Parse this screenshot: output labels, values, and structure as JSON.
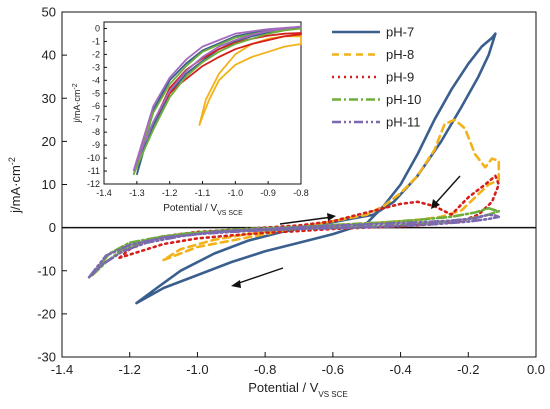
{
  "chart_data": [
    {
      "type": "line",
      "xlabel": "Potential / V",
      "xlabel_sub": "VS SCE",
      "ylabel": "j/mA·cm",
      "ylabel_sup": "-2",
      "xlim": [
        -1.4,
        0.0
      ],
      "ylim": [
        -30,
        50
      ],
      "xticks": [
        "-1.4",
        "-1.2",
        "-1.0",
        "-0.8",
        "-0.6",
        "-0.4",
        "-0.2",
        "0.0"
      ],
      "yticks": [
        "-30",
        "-20",
        "-10",
        "0",
        "10",
        "20",
        "30",
        "40",
        "50"
      ],
      "xtick_values": [
        -1.4,
        -1.2,
        -1.0,
        -0.8,
        -0.6,
        -0.4,
        -0.2,
        0.0
      ],
      "ytick_values": [
        -30,
        -20,
        -10,
        0,
        10,
        20,
        30,
        40,
        50
      ],
      "legend_position": "top-right",
      "series": [
        {
          "name": "pH-7",
          "color": "#3a5f8f",
          "dash": "solid",
          "x": [
            -1.18,
            -1.1,
            -1.0,
            -0.9,
            -0.8,
            -0.7,
            -0.6,
            -0.5,
            -0.45,
            -0.4,
            -0.35,
            -0.3,
            -0.25,
            -0.2,
            -0.16,
            -0.13,
            -0.12,
            -0.14,
            -0.17,
            -0.22,
            -0.28,
            -0.35,
            -0.42,
            -0.48,
            -0.55,
            -0.65,
            -0.75,
            -0.85,
            -0.95,
            -1.05,
            -1.12,
            -1.18
          ],
          "y": [
            -17.5,
            -14,
            -11,
            -8,
            -5.5,
            -3.5,
            -1.5,
            1,
            5,
            10,
            17,
            25,
            32,
            38,
            42,
            44,
            45,
            40,
            35,
            28,
            20,
            12,
            6,
            3,
            2,
            0.5,
            -1,
            -3,
            -6,
            -10,
            -14,
            -17.5
          ]
        },
        {
          "name": "pH-8",
          "color": "#f2b21a",
          "dash": "7,5",
          "x": [
            -1.1,
            -1.05,
            -1.0,
            -0.9,
            -0.8,
            -0.7,
            -0.6,
            -0.5,
            -0.45,
            -0.4,
            -0.35,
            -0.3,
            -0.27,
            -0.24,
            -0.21,
            -0.18,
            -0.15,
            -0.13,
            -0.11,
            -0.11,
            -0.14,
            -0.18,
            -0.22,
            -0.28,
            -0.35,
            -0.45,
            -0.55,
            -0.65,
            -0.75,
            -0.85,
            -0.95,
            -1.05,
            -1.1
          ],
          "y": [
            -7.5,
            -6,
            -4.5,
            -3,
            -1.5,
            0,
            1.5,
            3,
            5,
            8,
            12,
            18,
            24,
            25,
            23,
            17,
            14,
            16,
            15.5,
            11,
            10,
            7,
            4,
            2.5,
            1.8,
            1.2,
            0.8,
            0.3,
            -0.5,
            -1.5,
            -2.8,
            -5,
            -7.5
          ]
        },
        {
          "name": "pH-9",
          "color": "#d4201c",
          "dash": "2,4",
          "x": [
            -1.23,
            -1.2,
            -1.15,
            -1.1,
            -1.0,
            -0.9,
            -0.8,
            -0.7,
            -0.6,
            -0.55,
            -0.5,
            -0.45,
            -0.4,
            -0.35,
            -0.3,
            -0.25,
            -0.2,
            -0.15,
            -0.12,
            -0.11,
            -0.13,
            -0.17,
            -0.22,
            -0.3,
            -0.4,
            -0.5,
            -0.6,
            -0.7,
            -0.8,
            -0.9,
            -1.0,
            -1.1,
            -1.23
          ],
          "y": [
            -7,
            -5,
            -3,
            -2,
            -1,
            -0.5,
            0,
            0.5,
            1.5,
            2.5,
            3.5,
            4.5,
            5.5,
            6,
            5,
            3,
            7,
            10,
            12,
            10,
            6,
            3,
            1.5,
            0.8,
            0.3,
            0,
            -0.3,
            -0.8,
            -1.2,
            -1.8,
            -2.5,
            -3.8,
            -7
          ]
        },
        {
          "name": "pH-10",
          "color": "#6fae3c",
          "dash": "9,3,2,3",
          "x": [
            -1.31,
            -1.27,
            -1.22,
            -1.15,
            -1.05,
            -0.95,
            -0.85,
            -0.75,
            -0.65,
            -0.55,
            -0.45,
            -0.35,
            -0.25,
            -0.18,
            -0.14,
            -0.12,
            -0.11,
            -0.14,
            -0.2,
            -0.3,
            -0.4,
            -0.5,
            -0.6,
            -0.7,
            -0.8,
            -0.9,
            -1.0,
            -1.1,
            -1.2,
            -1.26,
            -1.31
          ],
          "y": [
            -11,
            -8,
            -5,
            -3,
            -1.5,
            -0.8,
            -0.3,
            0,
            0.4,
            0.8,
            1.2,
            1.8,
            2.5,
            3.5,
            4.5,
            4,
            3.8,
            3,
            2,
            1.2,
            0.6,
            0.2,
            0,
            -0.3,
            -0.6,
            -0.9,
            -1.3,
            -2,
            -3.5,
            -6,
            -11
          ]
        },
        {
          "name": "pH-11",
          "color": "#7b68b0",
          "dash": "9,3,2,3,2,3",
          "x": [
            -1.32,
            -1.28,
            -1.22,
            -1.15,
            -1.05,
            -0.95,
            -0.85,
            -0.75,
            -0.65,
            -0.55,
            -0.45,
            -0.35,
            -0.25,
            -0.18,
            -0.14,
            -0.12,
            -0.11,
            -0.14,
            -0.2,
            -0.3,
            -0.4,
            -0.5,
            -0.6,
            -0.7,
            -0.8,
            -0.9,
            -1.0,
            -1.1,
            -1.2,
            -1.27,
            -1.32
          ],
          "y": [
            -11.5,
            -8.5,
            -5.5,
            -3.5,
            -2,
            -1,
            -0.5,
            -0.1,
            0.3,
            0.6,
            0.9,
            1.2,
            1.6,
            2.2,
            3,
            2.8,
            2.5,
            2,
            1.4,
            0.8,
            0.4,
            0.1,
            -0.1,
            -0.3,
            -0.6,
            -1,
            -1.5,
            -2.3,
            -4,
            -6.5,
            -11.5
          ]
        }
      ]
    },
    {
      "type": "line",
      "xlabel": "Potential / V",
      "xlabel_sub": "VS SCE",
      "ylabel": "j/mA·cm",
      "ylabel_sup": "-2",
      "xlim": [
        -1.4,
        -0.8
      ],
      "ylim": [
        -12,
        0.5
      ],
      "xticks": [
        "-1.4",
        "-1.3",
        "-1.2",
        "-1.1",
        "-1.0",
        "-0.9",
        "-0.8"
      ],
      "yticks": [
        "0",
        "-1",
        "-2",
        "-3",
        "-4",
        "-5",
        "-6",
        "-7",
        "-8",
        "-9",
        "-10",
        "-11",
        "-12"
      ],
      "xtick_values": [
        -1.4,
        -1.3,
        -1.2,
        -1.1,
        -1.0,
        -0.9,
        -0.8
      ],
      "ytick_values": [
        0,
        -1,
        -2,
        -3,
        -4,
        -5,
        -6,
        -7,
        -8,
        -9,
        -10,
        -11,
        -12
      ],
      "legend_position": "none",
      "series": [
        {
          "name": "pH-7",
          "color": "#3a5f8f",
          "x": [
            -1.3,
            -1.28,
            -1.25,
            -1.2,
            -1.15,
            -1.1,
            -1.05,
            -1.0,
            -0.95,
            -0.9,
            -0.85,
            -0.8,
            -0.82,
            -0.9,
            -1.0,
            -1.1,
            -1.15,
            -1.2,
            -1.25,
            -1.3
          ],
          "y": [
            -11.3,
            -9.5,
            -7.5,
            -5,
            -3.5,
            -2.5,
            -1.6,
            -1.0,
            -0.6,
            -0.3,
            -0.1,
            0.1,
            0.0,
            -0.1,
            -0.6,
            -1.7,
            -2.7,
            -4,
            -6.3,
            -11.3
          ]
        },
        {
          "name": "pH-8",
          "color": "#f2b21a",
          "x": [
            -1.11,
            -1.1,
            -1.08,
            -1.05,
            -1.0,
            -0.95,
            -0.9,
            -0.85,
            -0.8,
            -0.8,
            -0.85,
            -0.9,
            -0.95,
            -1.0,
            -1.05,
            -1.09,
            -1.11
          ],
          "y": [
            -7.5,
            -6.8,
            -5.5,
            -4,
            -2.8,
            -2.2,
            -1.8,
            -1.4,
            -1.2,
            -0.6,
            -0.6,
            -0.8,
            -1.2,
            -2,
            -3.5,
            -5.5,
            -7.5
          ]
        },
        {
          "name": "pH-9",
          "color": "#d4201c",
          "x": [
            -1.24,
            -1.22,
            -1.2,
            -1.17,
            -1.13,
            -1.1,
            -1.05,
            -1.0,
            -0.95,
            -0.9,
            -0.85,
            -0.8,
            -0.8,
            -0.85,
            -0.9,
            -0.95,
            -1.0,
            -1.05,
            -1.1,
            -1.15,
            -1.2,
            -1.24
          ],
          "y": [
            -6.8,
            -5.8,
            -5.0,
            -4.3,
            -3.5,
            -2.9,
            -2.2,
            -1.6,
            -1.2,
            -0.9,
            -0.6,
            -0.45,
            -0.35,
            -0.4,
            -0.55,
            -0.8,
            -1.1,
            -1.6,
            -2.3,
            -3.2,
            -4.6,
            -6.8
          ]
        },
        {
          "name": "pH-10",
          "color": "#6fae3c",
          "x": [
            -1.31,
            -1.28,
            -1.25,
            -1.2,
            -1.15,
            -1.1,
            -1.05,
            -1.0,
            -0.95,
            -0.9,
            -0.85,
            -0.8,
            -0.82,
            -0.9,
            -1.0,
            -1.1,
            -1.15,
            -1.2,
            -1.25,
            -1.31
          ],
          "y": [
            -11.3,
            -9.5,
            -7.8,
            -5.3,
            -3.7,
            -2.6,
            -1.8,
            -1.2,
            -0.8,
            -0.4,
            -0.15,
            0.0,
            -0.05,
            -0.2,
            -0.7,
            -1.8,
            -2.9,
            -4.3,
            -6.5,
            -11.3
          ]
        },
        {
          "name": "pH-11",
          "color": "#a46abf",
          "x": [
            -1.31,
            -1.28,
            -1.25,
            -1.2,
            -1.15,
            -1.1,
            -1.05,
            -1.0,
            -0.95,
            -0.9,
            -0.85,
            -0.8,
            -0.82,
            -0.9,
            -1.0,
            -1.1,
            -1.15,
            -1.2,
            -1.25,
            -1.31
          ],
          "y": [
            -11.0,
            -9.0,
            -7.2,
            -4.8,
            -3.3,
            -2.2,
            -1.4,
            -0.9,
            -0.5,
            -0.2,
            0.0,
            0.15,
            0.1,
            -0.05,
            -0.4,
            -1.4,
            -2.4,
            -3.8,
            -6.0,
            -11.0
          ]
        }
      ]
    }
  ]
}
